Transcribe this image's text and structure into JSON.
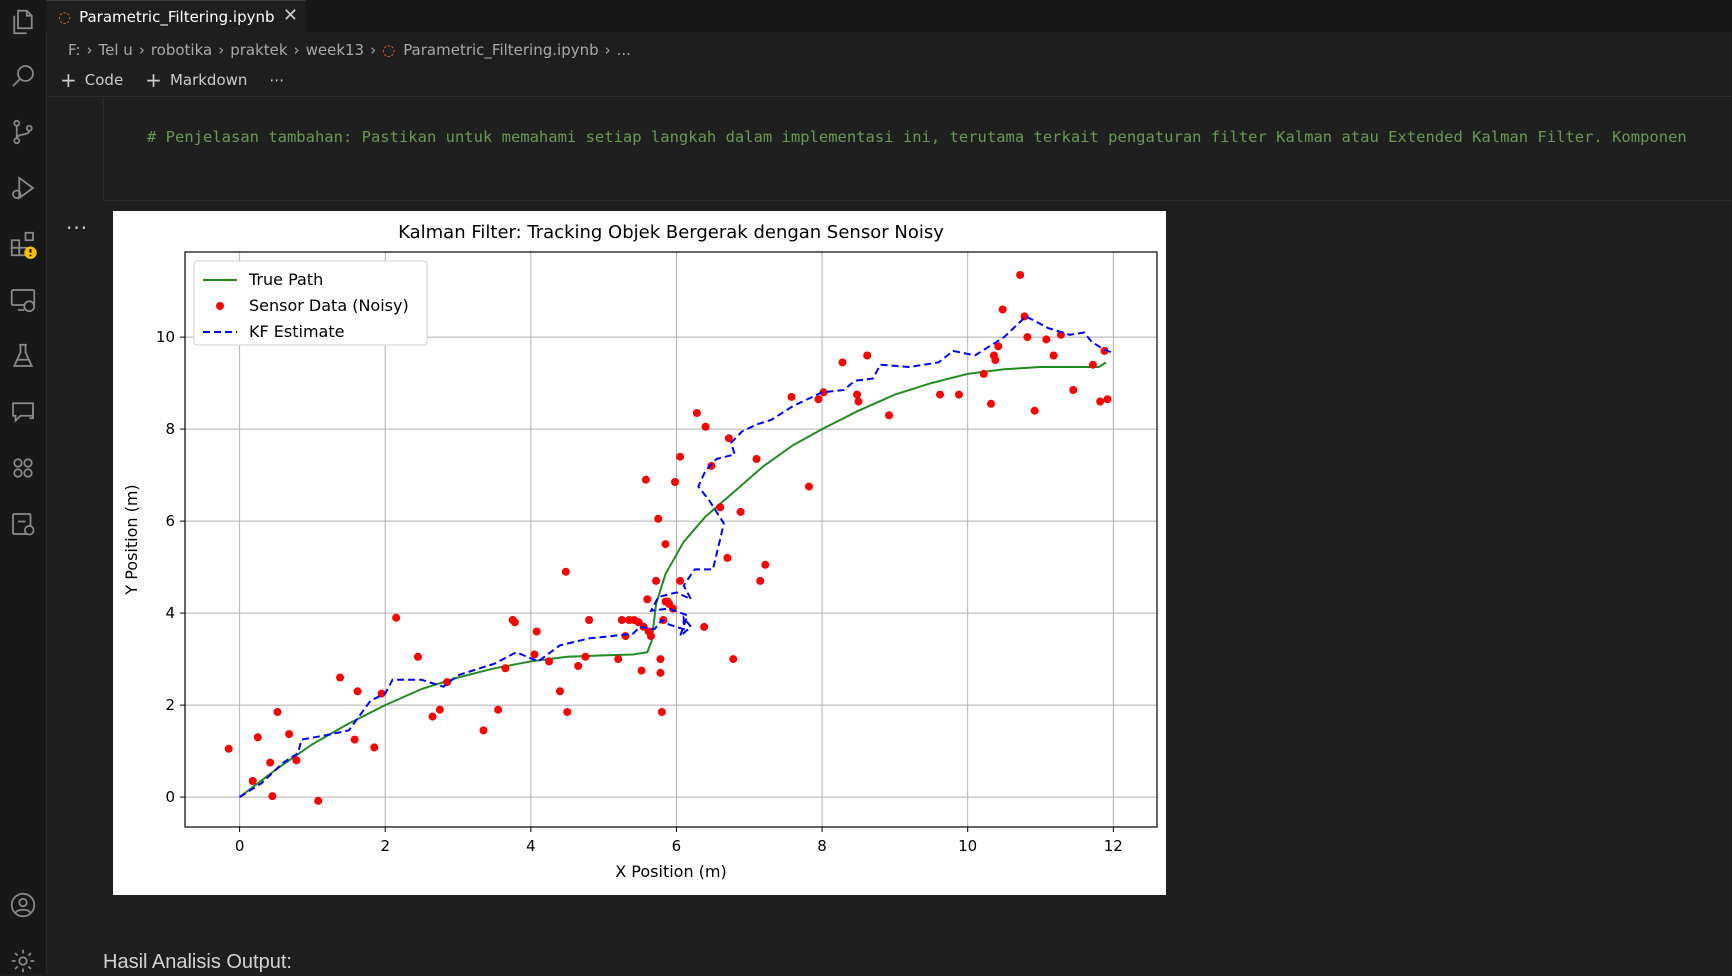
{
  "activity_bar": {
    "icons": [
      "explorer-icon",
      "search-icon",
      "source-control-icon",
      "run-debug-icon",
      "extensions-icon",
      "remote-explorer-icon",
      "testing-icon",
      "chat-icon",
      "extension-packs-icon",
      "settings-sync-icon"
    ],
    "bottom_icons": [
      "account-icon",
      "manage-gear-icon"
    ],
    "warning_badge_color": "#f2c200"
  },
  "tab": {
    "filename": "Parametric_Filtering.ipynb",
    "close": "✕"
  },
  "breadcrumb": {
    "items": [
      "F:",
      "Tel u",
      "robotika",
      "praktek",
      "week13",
      "Parametric_Filtering.ipynb",
      "..."
    ]
  },
  "toolbar": {
    "code_label": "Code",
    "markdown_label": "Markdown",
    "more": "⋯"
  },
  "code_cell": {
    "line": "# Penjelasan tambahan: Pastikan untuk memahami setiap langkah dalam implementasi ini, terutama terkait pengaturan filter Kalman atau Extended Kalman Filter. Komponen"
  },
  "output": {
    "more": "..."
  },
  "chart_data": {
    "type": "line",
    "title": "Kalman Filter: Tracking Objek Bergerak dengan Sensor Noisy",
    "xlabel": "X Position (m)",
    "ylabel": "Y Position (m)",
    "xlim": [
      -0.75,
      12.6
    ],
    "ylim": [
      -0.65,
      11.85
    ],
    "xticks": [
      0,
      2,
      4,
      6,
      8,
      10,
      12
    ],
    "yticks": [
      0,
      2,
      4,
      6,
      8,
      10
    ],
    "grid": true,
    "legend_position": "top-left",
    "series": [
      {
        "name": "True Path",
        "kind": "line",
        "color": "#228b22",
        "points": [
          [
            0,
            0
          ],
          [
            0.5,
            0.6
          ],
          [
            1,
            1.15
          ],
          [
            1.5,
            1.6
          ],
          [
            2,
            2.0
          ],
          [
            2.5,
            2.35
          ],
          [
            3,
            2.6
          ],
          [
            3.5,
            2.8
          ],
          [
            4,
            2.95
          ],
          [
            4.5,
            3.05
          ],
          [
            5,
            3.08
          ],
          [
            5.4,
            3.1
          ],
          [
            5.6,
            3.15
          ],
          [
            5.66,
            3.4
          ],
          [
            5.72,
            4.2
          ],
          [
            5.85,
            4.85
          ],
          [
            6.1,
            5.55
          ],
          [
            6.4,
            6.1
          ],
          [
            6.8,
            6.65
          ],
          [
            7.2,
            7.2
          ],
          [
            7.6,
            7.65
          ],
          [
            8,
            8.0
          ],
          [
            8.5,
            8.4
          ],
          [
            9,
            8.75
          ],
          [
            9.5,
            9.0
          ],
          [
            10,
            9.2
          ],
          [
            10.5,
            9.3
          ],
          [
            11,
            9.35
          ],
          [
            11.5,
            9.35
          ],
          [
            11.8,
            9.35
          ],
          [
            11.9,
            9.45
          ]
        ]
      },
      {
        "name": "Sensor Data (Noisy)",
        "kind": "scatter",
        "color": "#ff0000",
        "points": [
          [
            -0.15,
            1.05
          ],
          [
            0.18,
            0.35
          ],
          [
            0.25,
            1.3
          ],
          [
            0.42,
            0.75
          ],
          [
            0.45,
            0.02
          ],
          [
            0.52,
            1.85
          ],
          [
            0.68,
            1.37
          ],
          [
            0.78,
            0.8
          ],
          [
            1.08,
            -0.08
          ],
          [
            1.38,
            2.6
          ],
          [
            1.58,
            1.25
          ],
          [
            1.62,
            2.3
          ],
          [
            1.85,
            1.08
          ],
          [
            1.95,
            2.25
          ],
          [
            2.15,
            3.9
          ],
          [
            2.45,
            3.05
          ],
          [
            2.65,
            1.75
          ],
          [
            2.75,
            1.9
          ],
          [
            2.85,
            2.5
          ],
          [
            3.35,
            1.45
          ],
          [
            3.55,
            1.9
          ],
          [
            3.65,
            2.8
          ],
          [
            3.75,
            3.85
          ],
          [
            3.78,
            3.8
          ],
          [
            4.05,
            3.1
          ],
          [
            4.08,
            3.6
          ],
          [
            4.25,
            2.95
          ],
          [
            4.4,
            2.3
          ],
          [
            4.48,
            4.9
          ],
          [
            4.5,
            1.85
          ],
          [
            4.65,
            2.85
          ],
          [
            4.75,
            3.05
          ],
          [
            4.8,
            3.85
          ],
          [
            5.2,
            3.0
          ],
          [
            5.25,
            3.85
          ],
          [
            5.3,
            3.5
          ],
          [
            5.35,
            3.85
          ],
          [
            5.42,
            3.85
          ],
          [
            5.48,
            3.8
          ],
          [
            5.52,
            2.75
          ],
          [
            5.55,
            3.7
          ],
          [
            5.58,
            6.9
          ],
          [
            5.6,
            4.3
          ],
          [
            5.62,
            3.6
          ],
          [
            5.65,
            3.5
          ],
          [
            5.72,
            4.7
          ],
          [
            5.75,
            6.05
          ],
          [
            5.78,
            3.0
          ],
          [
            5.78,
            2.7
          ],
          [
            5.8,
            1.85
          ],
          [
            5.82,
            3.85
          ],
          [
            5.85,
            5.5
          ],
          [
            5.85,
            4.25
          ],
          [
            5.88,
            4.25
          ],
          [
            5.9,
            4.2
          ],
          [
            5.95,
            4.1
          ],
          [
            5.98,
            6.85
          ],
          [
            6.05,
            7.4
          ],
          [
            6.05,
            4.7
          ],
          [
            6.28,
            8.35
          ],
          [
            6.38,
            3.7
          ],
          [
            6.4,
            8.05
          ],
          [
            6.48,
            7.2
          ],
          [
            6.6,
            6.3
          ],
          [
            6.7,
            5.2
          ],
          [
            6.72,
            7.8
          ],
          [
            6.78,
            3.0
          ],
          [
            6.88,
            6.2
          ],
          [
            7.1,
            7.35
          ],
          [
            7.15,
            4.7
          ],
          [
            7.22,
            5.05
          ],
          [
            7.58,
            8.7
          ],
          [
            7.82,
            6.75
          ],
          [
            7.95,
            8.65
          ],
          [
            8.02,
            8.8
          ],
          [
            8.28,
            9.45
          ],
          [
            8.48,
            8.75
          ],
          [
            8.5,
            8.6
          ],
          [
            8.62,
            9.6
          ],
          [
            8.92,
            8.3
          ],
          [
            9.62,
            8.75
          ],
          [
            9.88,
            8.75
          ],
          [
            10.22,
            9.2
          ],
          [
            10.32,
            8.55
          ],
          [
            10.36,
            9.6
          ],
          [
            10.38,
            9.5
          ],
          [
            10.42,
            9.8
          ],
          [
            10.48,
            10.6
          ],
          [
            10.72,
            11.35
          ],
          [
            10.78,
            10.45
          ],
          [
            10.82,
            10.0
          ],
          [
            10.92,
            8.4
          ],
          [
            11.08,
            9.95
          ],
          [
            11.18,
            9.6
          ],
          [
            11.28,
            10.05
          ],
          [
            11.45,
            8.85
          ],
          [
            11.72,
            9.4
          ],
          [
            11.82,
            8.6
          ],
          [
            11.88,
            9.7
          ],
          [
            11.92,
            8.65
          ]
        ]
      },
      {
        "name": "KF Estimate",
        "kind": "dashed-line",
        "color": "#0000ff",
        "points": [
          [
            0,
            0
          ],
          [
            0.3,
            0.3
          ],
          [
            0.6,
            0.75
          ],
          [
            0.8,
            0.95
          ],
          [
            0.85,
            1.25
          ],
          [
            1.2,
            1.35
          ],
          [
            1.5,
            1.45
          ],
          [
            1.8,
            2.1
          ],
          [
            2.0,
            2.25
          ],
          [
            2.1,
            2.55
          ],
          [
            2.5,
            2.55
          ],
          [
            2.8,
            2.4
          ],
          [
            3.0,
            2.65
          ],
          [
            3.5,
            2.9
          ],
          [
            3.8,
            3.15
          ],
          [
            4.1,
            2.95
          ],
          [
            4.4,
            3.3
          ],
          [
            4.8,
            3.45
          ],
          [
            5.1,
            3.5
          ],
          [
            5.4,
            3.55
          ],
          [
            5.5,
            3.7
          ],
          [
            5.7,
            3.65
          ],
          [
            5.8,
            3.85
          ],
          [
            5.9,
            3.75
          ],
          [
            6.1,
            3.65
          ],
          [
            6.1,
            3.9
          ],
          [
            6.2,
            3.7
          ],
          [
            6.05,
            3.5
          ],
          [
            6.15,
            3.95
          ],
          [
            5.9,
            4.1
          ],
          [
            5.65,
            4.05
          ],
          [
            5.75,
            4.35
          ],
          [
            6.0,
            4.45
          ],
          [
            6.2,
            4.3
          ],
          [
            6.1,
            4.6
          ],
          [
            6.25,
            4.95
          ],
          [
            6.5,
            4.95
          ],
          [
            6.6,
            5.6
          ],
          [
            6.65,
            5.95
          ],
          [
            6.45,
            6.45
          ],
          [
            6.3,
            6.75
          ],
          [
            6.4,
            7.1
          ],
          [
            6.55,
            7.35
          ],
          [
            6.8,
            7.45
          ],
          [
            6.75,
            7.7
          ],
          [
            6.9,
            7.95
          ],
          [
            7.1,
            8.1
          ],
          [
            7.3,
            8.2
          ],
          [
            7.6,
            8.5
          ],
          [
            8.0,
            8.8
          ],
          [
            8.3,
            8.85
          ],
          [
            8.45,
            9.05
          ],
          [
            8.7,
            9.1
          ],
          [
            8.8,
            9.4
          ],
          [
            9.2,
            9.35
          ],
          [
            9.6,
            9.45
          ],
          [
            9.8,
            9.7
          ],
          [
            10.1,
            9.6
          ],
          [
            10.3,
            9.8
          ],
          [
            10.5,
            10.0
          ],
          [
            10.8,
            10.45
          ],
          [
            11.1,
            10.2
          ],
          [
            11.4,
            10.05
          ],
          [
            11.6,
            10.1
          ],
          [
            11.7,
            9.9
          ],
          [
            11.85,
            9.75
          ],
          [
            12.0,
            9.65
          ]
        ]
      }
    ]
  },
  "markdown": {
    "heading": "Hasil Analisis Output:"
  }
}
